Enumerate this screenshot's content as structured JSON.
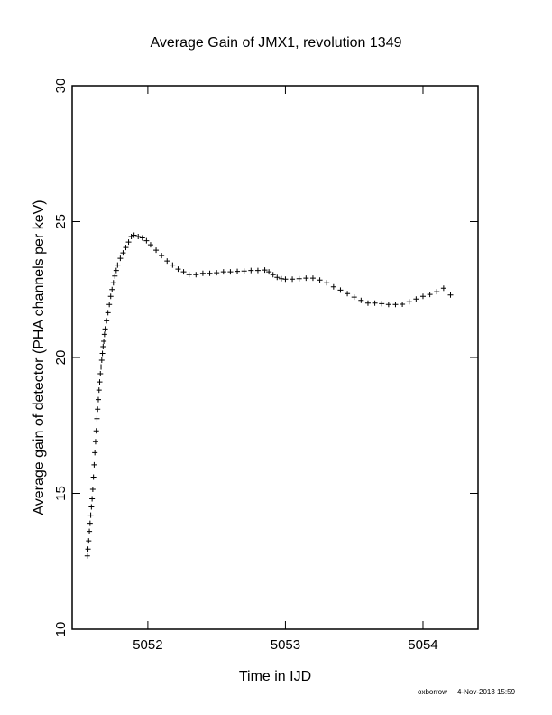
{
  "chart_data": {
    "type": "scatter",
    "title": "Average Gain of JMX1, revolution 1349",
    "xlabel": "Time in IJD",
    "ylabel": "Average gain of detector (PHA channels per keV)",
    "xlim": [
      5051.45,
      5054.4
    ],
    "ylim": [
      10,
      30
    ],
    "xticks": [
      5052,
      5053,
      5054
    ],
    "yticks": [
      10,
      15,
      20,
      25,
      30
    ],
    "grid": false,
    "marker": "plus",
    "series": [
      {
        "points": [
          [
            5051.56,
            12.7
          ],
          [
            5051.565,
            12.95
          ],
          [
            5051.57,
            13.25
          ],
          [
            5051.575,
            13.6
          ],
          [
            5051.58,
            13.9
          ],
          [
            5051.585,
            14.2
          ],
          [
            5051.59,
            14.5
          ],
          [
            5051.595,
            14.8
          ],
          [
            5051.6,
            15.15
          ],
          [
            5051.605,
            15.6
          ],
          [
            5051.61,
            16.05
          ],
          [
            5051.615,
            16.5
          ],
          [
            5051.62,
            16.9
          ],
          [
            5051.625,
            17.3
          ],
          [
            5051.63,
            17.75
          ],
          [
            5051.635,
            18.1
          ],
          [
            5051.64,
            18.45
          ],
          [
            5051.645,
            18.8
          ],
          [
            5051.65,
            19.1
          ],
          [
            5051.655,
            19.4
          ],
          [
            5051.66,
            19.65
          ],
          [
            5051.665,
            19.9
          ],
          [
            5051.67,
            20.15
          ],
          [
            5051.675,
            20.4
          ],
          [
            5051.68,
            20.6
          ],
          [
            5051.685,
            20.85
          ],
          [
            5051.69,
            21.05
          ],
          [
            5051.7,
            21.35
          ],
          [
            5051.71,
            21.65
          ],
          [
            5051.72,
            21.95
          ],
          [
            5051.73,
            22.25
          ],
          [
            5051.74,
            22.5
          ],
          [
            5051.75,
            22.75
          ],
          [
            5051.76,
            23.0
          ],
          [
            5051.77,
            23.2
          ],
          [
            5051.78,
            23.4
          ],
          [
            5051.8,
            23.65
          ],
          [
            5051.82,
            23.85
          ],
          [
            5051.84,
            24.05
          ],
          [
            5051.86,
            24.25
          ],
          [
            5051.88,
            24.45
          ],
          [
            5051.9,
            24.5
          ],
          [
            5051.93,
            24.45
          ],
          [
            5051.96,
            24.4
          ],
          [
            5051.99,
            24.3
          ],
          [
            5052.02,
            24.15
          ],
          [
            5052.06,
            23.95
          ],
          [
            5052.1,
            23.75
          ],
          [
            5052.14,
            23.55
          ],
          [
            5052.18,
            23.4
          ],
          [
            5052.22,
            23.25
          ],
          [
            5052.26,
            23.15
          ],
          [
            5052.3,
            23.05
          ],
          [
            5052.35,
            23.05
          ],
          [
            5052.4,
            23.1
          ],
          [
            5052.45,
            23.1
          ],
          [
            5052.5,
            23.12
          ],
          [
            5052.55,
            23.15
          ],
          [
            5052.6,
            23.15
          ],
          [
            5052.65,
            23.17
          ],
          [
            5052.7,
            23.18
          ],
          [
            5052.75,
            23.2
          ],
          [
            5052.8,
            23.2
          ],
          [
            5052.85,
            23.22
          ],
          [
            5052.88,
            23.15
          ],
          [
            5052.91,
            23.05
          ],
          [
            5052.94,
            22.95
          ],
          [
            5052.97,
            22.9
          ],
          [
            5053.0,
            22.88
          ],
          [
            5053.05,
            22.88
          ],
          [
            5053.1,
            22.9
          ],
          [
            5053.15,
            22.92
          ],
          [
            5053.2,
            22.92
          ],
          [
            5053.25,
            22.85
          ],
          [
            5053.3,
            22.75
          ],
          [
            5053.35,
            22.6
          ],
          [
            5053.4,
            22.48
          ],
          [
            5053.45,
            22.35
          ],
          [
            5053.5,
            22.22
          ],
          [
            5053.55,
            22.1
          ],
          [
            5053.6,
            22.0
          ],
          [
            5053.65,
            22.0
          ],
          [
            5053.7,
            21.98
          ],
          [
            5053.75,
            21.95
          ],
          [
            5053.8,
            21.95
          ],
          [
            5053.85,
            21.96
          ],
          [
            5053.9,
            22.05
          ],
          [
            5053.95,
            22.15
          ],
          [
            5054.0,
            22.25
          ],
          [
            5054.05,
            22.32
          ],
          [
            5054.1,
            22.42
          ],
          [
            5054.15,
            22.55
          ],
          [
            5054.2,
            22.3
          ]
        ]
      }
    ]
  },
  "footer": {
    "author": "oxborrow",
    "datetime": "4-Nov-2013 15:59"
  }
}
